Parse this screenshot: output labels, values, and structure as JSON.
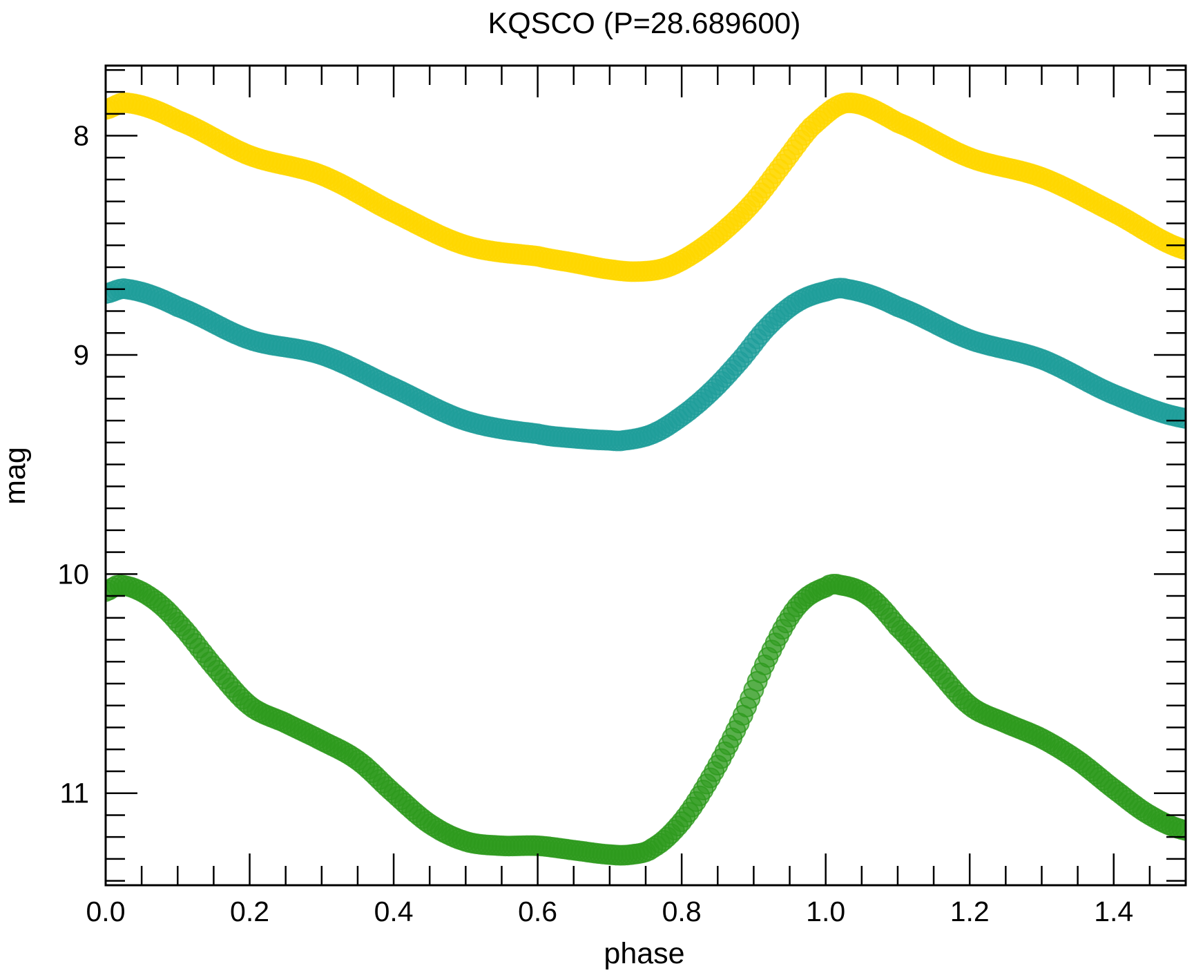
{
  "chart_data": {
    "type": "scatter",
    "title": "KQSCO (P=28.689600)",
    "xlabel": "phase",
    "ylabel": "mag",
    "xlim": [
      0.0,
      1.5
    ],
    "ylim": [
      11.42,
      7.68
    ],
    "y_inverted": true,
    "x_ticks": [
      "0.0",
      "0.2",
      "0.4",
      "0.6",
      "0.8",
      "1.0",
      "1.2",
      "1.4"
    ],
    "y_ticks": [
      "8",
      "9",
      "10",
      "11"
    ],
    "grid": false,
    "legend": "none",
    "series": [
      {
        "color": "#FFD700",
        "x": [
          0.0,
          0.03,
          0.1,
          0.2,
          0.3,
          0.4,
          0.5,
          0.6,
          0.65,
          0.7,
          0.74,
          0.78,
          0.82,
          0.86,
          0.9,
          0.94,
          0.98,
          1.03,
          1.1,
          1.2,
          1.3,
          1.4,
          1.5
        ],
        "y": [
          7.88,
          7.85,
          7.93,
          8.09,
          8.18,
          8.35,
          8.5,
          8.55,
          8.58,
          8.61,
          8.62,
          8.6,
          8.53,
          8.43,
          8.3,
          8.13,
          7.96,
          7.85,
          7.94,
          8.1,
          8.19,
          8.35,
          8.52
        ]
      },
      {
        "color": "#1F9E9A",
        "x": [
          0.0,
          0.03,
          0.1,
          0.2,
          0.3,
          0.4,
          0.5,
          0.6,
          0.65,
          0.7,
          0.72,
          0.76,
          0.8,
          0.84,
          0.88,
          0.92,
          0.96,
          1.0,
          1.03,
          1.1,
          1.2,
          1.3,
          1.4,
          1.5
        ],
        "y": [
          8.72,
          8.7,
          8.78,
          8.93,
          9.0,
          9.15,
          9.3,
          9.36,
          9.38,
          9.39,
          9.39,
          9.36,
          9.28,
          9.17,
          9.03,
          8.87,
          8.76,
          8.71,
          8.7,
          8.78,
          8.93,
          9.02,
          9.18,
          9.29
        ]
      },
      {
        "color": "#2E9A1E",
        "x": [
          0.0,
          0.02,
          0.06,
          0.1,
          0.15,
          0.2,
          0.25,
          0.3,
          0.35,
          0.4,
          0.45,
          0.5,
          0.55,
          0.6,
          0.65,
          0.7,
          0.73,
          0.76,
          0.8,
          0.84,
          0.88,
          0.92,
          0.96,
          1.0,
          1.02,
          1.06,
          1.1,
          1.15,
          1.2,
          1.25,
          1.3,
          1.35,
          1.4,
          1.45,
          1.5
        ],
        "y": [
          10.08,
          10.05,
          10.1,
          10.22,
          10.42,
          10.6,
          10.68,
          10.76,
          10.85,
          11.0,
          11.14,
          11.22,
          11.24,
          11.24,
          11.26,
          11.28,
          11.28,
          11.25,
          11.13,
          10.93,
          10.68,
          10.38,
          10.15,
          10.06,
          10.05,
          10.1,
          10.24,
          10.42,
          10.6,
          10.68,
          10.75,
          10.85,
          10.98,
          11.1,
          11.17
        ]
      }
    ]
  }
}
